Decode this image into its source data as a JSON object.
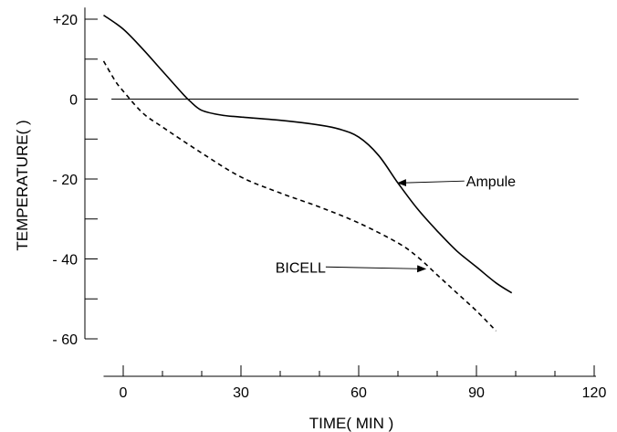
{
  "chart_data": {
    "type": "line",
    "title": "",
    "xlabel": "TIME( MIN )",
    "ylabel": "TEMPERATURE(     )",
    "xlim": [
      -5,
      120
    ],
    "ylim": [
      -60,
      22
    ],
    "grid": false,
    "x_ticks": {
      "major": [
        0,
        30,
        60,
        90,
        120
      ],
      "minor": [
        10,
        20,
        40,
        50,
        70,
        80,
        100,
        110
      ],
      "labels": [
        "0",
        "30",
        "60",
        "90",
        "120"
      ]
    },
    "y_ticks": {
      "major": [
        20,
        0,
        -20,
        -40,
        -60
      ],
      "minor": [
        10,
        -10,
        -30,
        -50
      ],
      "labels": [
        "+20",
        "0",
        "- 20",
        "- 40",
        "- 60"
      ]
    },
    "reference_line": {
      "y": 0,
      "x_start": -3,
      "x_end": 116
    },
    "series": [
      {
        "name": "Ampule",
        "style": "solid",
        "color": "#000000",
        "points": [
          [
            -5,
            21
          ],
          [
            0,
            17.5
          ],
          [
            5,
            12.5
          ],
          [
            10,
            7
          ],
          [
            15,
            1.5
          ],
          [
            17,
            -0.5
          ],
          [
            20,
            -2.8
          ],
          [
            25,
            -4
          ],
          [
            30,
            -4.5
          ],
          [
            40,
            -5.3
          ],
          [
            50,
            -6.5
          ],
          [
            55,
            -7.5
          ],
          [
            60,
            -9.5
          ],
          [
            65,
            -14
          ],
          [
            70,
            -21
          ],
          [
            75,
            -27.5
          ],
          [
            80,
            -33
          ],
          [
            85,
            -38
          ],
          [
            90,
            -42
          ],
          [
            95,
            -46
          ],
          [
            99,
            -48.5
          ]
        ]
      },
      {
        "name": "BICELL",
        "style": "dashed",
        "color": "#000000",
        "points": [
          [
            -5,
            9.5
          ],
          [
            -2,
            4.5
          ],
          [
            0,
            2
          ],
          [
            5,
            -3.5
          ],
          [
            10,
            -7
          ],
          [
            20,
            -13.5
          ],
          [
            30,
            -19.5
          ],
          [
            40,
            -23.5
          ],
          [
            50,
            -27
          ],
          [
            60,
            -31
          ],
          [
            70,
            -36
          ],
          [
            75,
            -39.5
          ],
          [
            80,
            -44
          ],
          [
            85,
            -48.5
          ],
          [
            90,
            -53
          ],
          [
            95,
            -58
          ]
        ]
      }
    ],
    "annotations": [
      {
        "text": "Ampule",
        "arrow_to": [
          70,
          -21
        ],
        "text_at": [
          86,
          -20.5
        ]
      },
      {
        "text": "BICELL",
        "arrow_to": [
          77,
          -42.5
        ],
        "text_at": [
          53,
          -42
        ]
      }
    ]
  }
}
